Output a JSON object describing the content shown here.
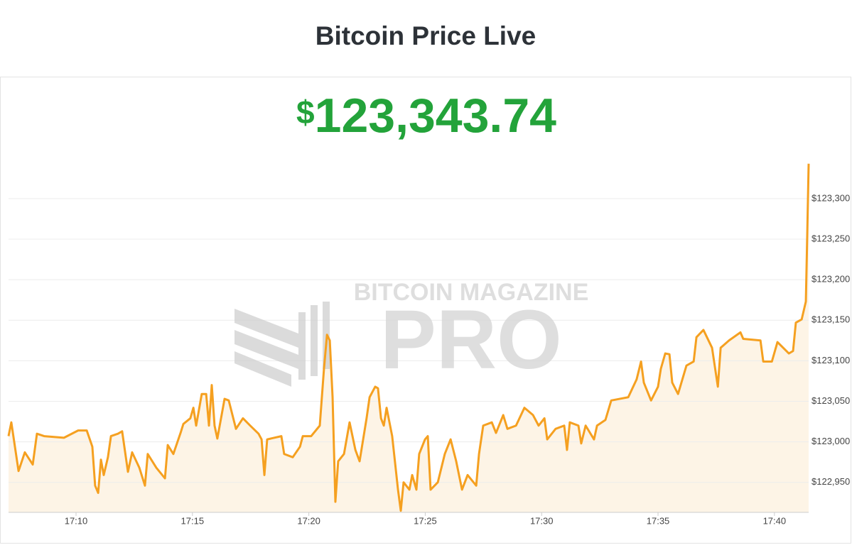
{
  "page_title": "Bitcoin Price Live",
  "price": {
    "symbol": "$",
    "amount": "123,343.74"
  },
  "watermark": {
    "top": "BITCOIN MAGAZINE",
    "main": "PRO"
  },
  "chart_data": {
    "type": "line",
    "x": [
      7.1,
      7.22,
      7.53,
      7.8,
      8.14,
      8.32,
      8.63,
      9.48,
      10.09,
      10.46,
      10.7,
      10.82,
      10.95,
      11.07,
      11.19,
      11.37,
      11.5,
      11.8,
      11.98,
      12.23,
      12.41,
      12.72,
      12.96,
      13.08,
      13.45,
      13.82,
      13.94,
      14.18,
      14.49,
      14.61,
      14.91,
      15.04,
      15.16,
      15.4,
      15.59,
      15.71,
      15.83,
      15.95,
      16.07,
      16.38,
      16.56,
      16.87,
      17.17,
      17.48,
      17.84,
      17.97,
      18.09,
      18.21,
      18.82,
      18.94,
      19.31,
      19.62,
      19.74,
      20.1,
      20.47,
      20.65,
      20.78,
      20.9,
      21.02,
      21.14,
      21.26,
      21.51,
      21.75,
      22.0,
      22.18,
      22.48,
      22.61,
      22.85,
      22.97,
      23.1,
      23.22,
      23.34,
      23.58,
      23.83,
      23.95,
      24.07,
      24.32,
      24.44,
      24.62,
      24.74,
      24.99,
      25.11,
      25.23,
      25.54,
      25.84,
      26.09,
      26.33,
      26.58,
      26.82,
      27.19,
      27.31,
      27.49,
      27.86,
      28.04,
      28.35,
      28.53,
      28.9,
      29.26,
      29.63,
      29.87,
      30.12,
      30.24,
      30.6,
      30.97,
      31.09,
      31.21,
      31.58,
      31.7,
      31.89,
      32.25,
      32.38,
      32.74,
      32.99,
      33.35,
      33.72,
      34.08,
      34.27,
      34.39,
      34.7,
      35.0,
      35.12,
      35.31,
      35.49,
      35.61,
      35.86,
      36.22,
      36.53,
      36.65,
      36.95,
      37.32,
      37.57,
      37.69,
      38.05,
      38.54,
      38.66,
      39.4,
      39.52,
      39.89,
      40.13,
      40.62,
      40.8,
      40.92,
      41.17,
      41.35,
      41.41,
      41.47
    ],
    "series": [
      {
        "color": "#f5a020",
        "fill": "#fdf4e6",
        "values": [
          123007,
          123024,
          122964,
          122987,
          122972,
          123010,
          123007,
          123005,
          123014,
          123014,
          122994,
          122946,
          122937,
          122978,
          122959,
          122981,
          123007,
          123010,
          123013,
          122963,
          122987,
          122968,
          122946,
          122985,
          122968,
          122955,
          122996,
          122985,
          123011,
          123022,
          123029,
          123042,
          123020,
          123059,
          123059,
          123020,
          123070,
          123020,
          123004,
          123053,
          123051,
          123016,
          123029,
          123020,
          123010,
          123003,
          122959,
          123003,
          123007,
          122985,
          122981,
          122994,
          123007,
          123007,
          123020,
          123090,
          123132,
          123125,
          123055,
          122926,
          122976,
          122985,
          123024,
          122990,
          122976,
          123029,
          123055,
          123068,
          123066,
          123029,
          123020,
          123042,
          123007,
          122941,
          122915,
          122950,
          122941,
          122959,
          122941,
          122985,
          123003,
          123007,
          122941,
          122950,
          122985,
          123003,
          122976,
          122941,
          122959,
          122946,
          122985,
          123020,
          123024,
          123011,
          123033,
          123016,
          123020,
          123042,
          123033,
          123020,
          123029,
          123003,
          123016,
          123020,
          122990,
          123024,
          123020,
          122998,
          123020,
          123003,
          123020,
          123027,
          123051,
          123053,
          123055,
          123077,
          123099,
          123073,
          123051,
          123068,
          123090,
          123109,
          123108,
          123073,
          123059,
          123094,
          123099,
          123129,
          123138,
          123116,
          123068,
          123116,
          123125,
          123135,
          123127,
          123125,
          123099,
          123099,
          123123,
          123109,
          123112,
          123147,
          123151,
          123173,
          123256,
          123343
        ]
      }
    ],
    "xlim": [
      7.1,
      41.47
    ],
    "xticks": [
      {
        "value": 10,
        "label": "17:10"
      },
      {
        "value": 15,
        "label": "17:15"
      },
      {
        "value": 20,
        "label": "17:20"
      },
      {
        "value": 25,
        "label": "17:25"
      },
      {
        "value": 30,
        "label": "17:30"
      },
      {
        "value": 35,
        "label": "17:35"
      },
      {
        "value": 40,
        "label": "17:40"
      }
    ],
    "ylim": [
      122913,
      123348
    ],
    "yticks": [
      {
        "value": 122950,
        "label": "$122,950"
      },
      {
        "value": 123000,
        "label": "$123,000"
      },
      {
        "value": 123050,
        "label": "$123,050"
      },
      {
        "value": 123100,
        "label": "$123,100"
      },
      {
        "value": 123150,
        "label": "$123,150"
      },
      {
        "value": 123200,
        "label": "$123,200"
      },
      {
        "value": 123250,
        "label": "$123,250"
      },
      {
        "value": 123300,
        "label": "$123,300"
      }
    ],
    "grid": true
  }
}
